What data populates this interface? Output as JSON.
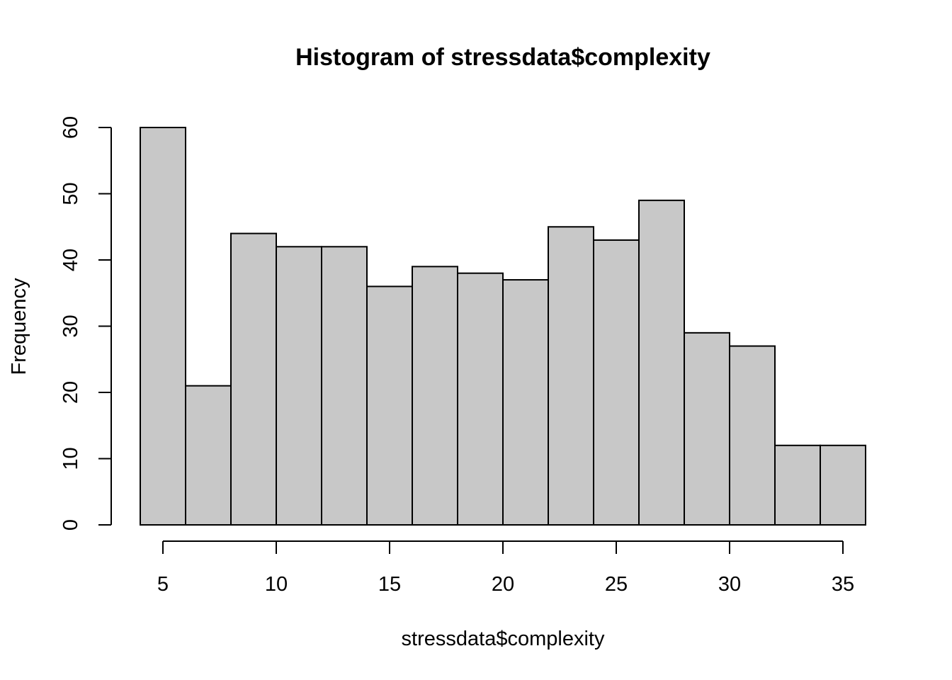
{
  "chart_data": {
    "type": "bar",
    "title": "Histogram of stressdata$complexity",
    "xlabel": "stressdata$complexity",
    "ylabel": "Frequency",
    "bin_edges": [
      4,
      6,
      8,
      10,
      12,
      14,
      16,
      18,
      20,
      22,
      24,
      26,
      28,
      30,
      32,
      34,
      36
    ],
    "values": [
      60,
      21,
      44,
      42,
      42,
      36,
      39,
      38,
      37,
      45,
      43,
      49,
      29,
      27,
      12,
      12
    ],
    "x_ticks": [
      5,
      10,
      15,
      20,
      25,
      30,
      35
    ],
    "y_ticks": [
      0,
      10,
      20,
      30,
      40,
      50,
      60
    ],
    "xlim": [
      4,
      36
    ],
    "ylim": [
      0,
      60
    ],
    "bar_color": "#c8c8c8",
    "grid": false
  }
}
